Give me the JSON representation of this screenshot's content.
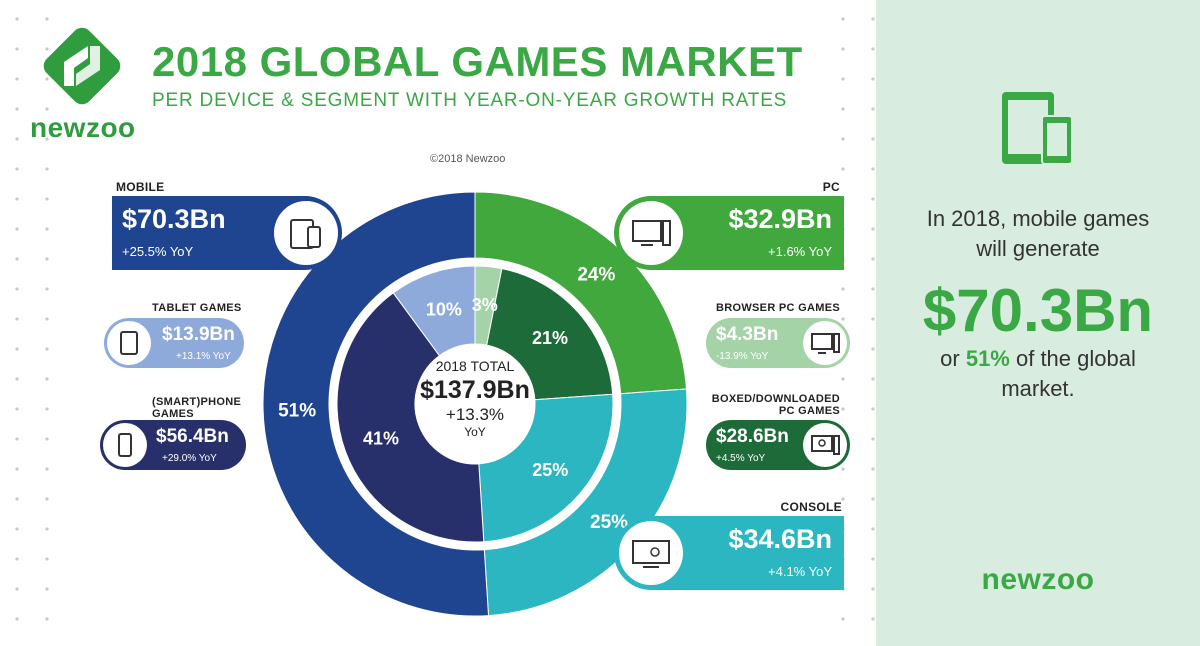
{
  "header": {
    "title": "2018 GLOBAL GAMES MARKET",
    "subtitle": "PER DEVICE & SEGMENT WITH YEAR-ON-YEAR GROWTH RATES",
    "logo_text": "newzoo",
    "copyright": "©2018 Newzoo"
  },
  "center": {
    "label": "2018 TOTAL",
    "value": "$137.9Bn",
    "growth": "+13.3%",
    "growth_unit": "YoY"
  },
  "segments": {
    "mobile": {
      "label": "MOBILE",
      "value": "$70.3Bn",
      "yoy": "+25.5% YoY"
    },
    "tablet": {
      "label": "TABLET GAMES",
      "value": "$13.9Bn",
      "yoy": "+13.1% YoY"
    },
    "phone": {
      "label_line1": "(SMART)PHONE",
      "label_line2": "GAMES",
      "value": "$56.4Bn",
      "yoy": "+29.0% YoY"
    },
    "pc": {
      "label": "PC",
      "value": "$32.9Bn",
      "yoy": "+1.6% YoY"
    },
    "browser": {
      "label": "BROWSER PC GAMES",
      "value": "$4.3Bn",
      "yoy": "-13.9% YoY"
    },
    "boxed": {
      "label_line1": "BOXED/DOWNLOADED",
      "label_line2": "PC GAMES",
      "value": "$28.6Bn",
      "yoy": "+4.5% YoY"
    },
    "console": {
      "label": "CONSOLE",
      "value": "$34.6Bn",
      "yoy": "+4.1% YoY"
    }
  },
  "sidebar": {
    "line1": "In 2018, mobile games",
    "line2": "will generate",
    "big_value": "$70.3Bn",
    "line3_prefix": "or ",
    "line3_pct": "51%",
    "line3_suffix": " of the global",
    "line4": "market.",
    "logo_text": "newzoo"
  },
  "colors": {
    "mobile": "#1f4591",
    "tablet": "#8eaadb",
    "phone": "#27306b",
    "pc": "#41a83d",
    "browser": "#a4d3a8",
    "boxed": "#1c6b39",
    "console": "#2bb6c2",
    "brand_green": "#3aa844",
    "sidebar_bg": "#d9ece0"
  },
  "chart_data": {
    "type": "pie",
    "variant": "nested-donut",
    "rings": [
      {
        "name": "outer",
        "categories": [
          "PC",
          "Console",
          "Mobile"
        ],
        "values": [
          32.9,
          34.6,
          70.3
        ],
        "percent_labels": [
          "24%",
          "25%",
          "51%"
        ]
      },
      {
        "name": "inner",
        "categories": [
          "Browser PC Games",
          "Boxed/Downloaded PC Games",
          "Console",
          "(Smart)phone Games",
          "Tablet Games"
        ],
        "values": [
          4.3,
          28.6,
          34.6,
          56.4,
          13.9
        ],
        "percent_labels": [
          "3%",
          "21%",
          "25%",
          "41%",
          "10%"
        ]
      }
    ],
    "total": 137.9
  }
}
